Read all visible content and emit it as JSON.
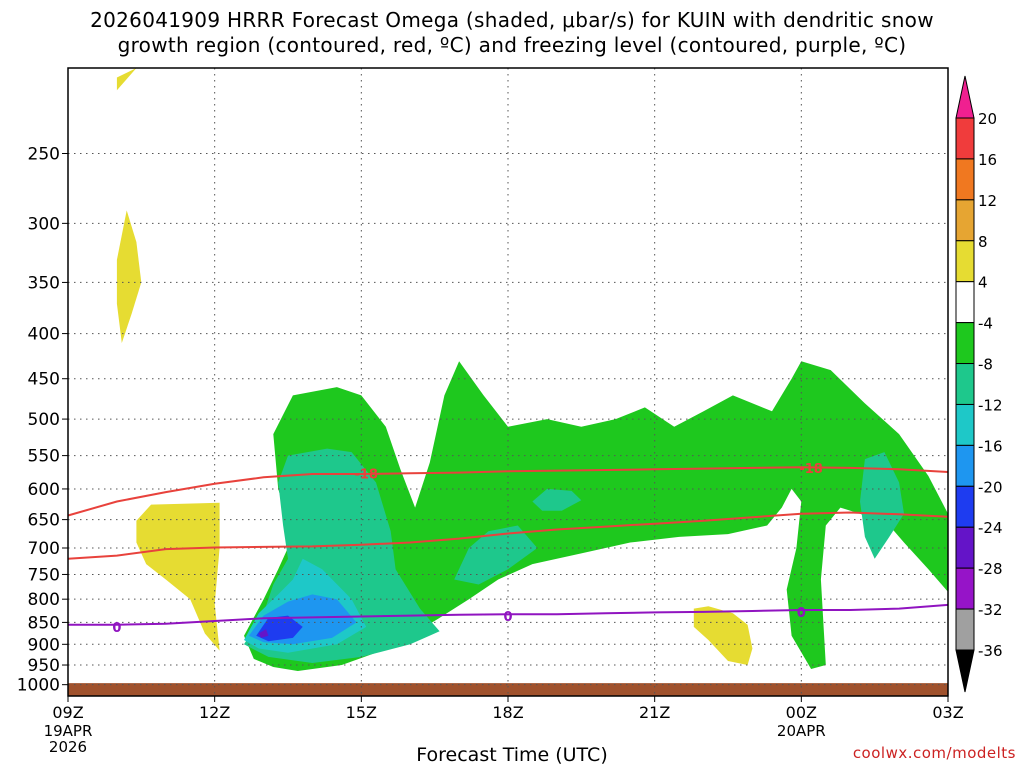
{
  "chart_data": {
    "type": "heatmap",
    "title_line1": "2026041909 HRRR Forecast Omega (shaded, μbar/s) for KUIN with dendritic snow",
    "title_line2": "growth region (contoured, red, ºC) and freezing level (contoured, purple, ºC)",
    "xlabel": "Forecast Time (UTC)",
    "credit": "coolwx.com/modelts",
    "x_ticks": [
      {
        "hour": 0,
        "label": "09Z",
        "sub1": "19APR",
        "sub2": "2026"
      },
      {
        "hour": 3,
        "label": "12Z",
        "sub1": "",
        "sub2": ""
      },
      {
        "hour": 6,
        "label": "15Z",
        "sub1": "",
        "sub2": ""
      },
      {
        "hour": 9,
        "label": "18Z",
        "sub1": "",
        "sub2": ""
      },
      {
        "hour": 12,
        "label": "21Z",
        "sub1": "",
        "sub2": ""
      },
      {
        "hour": 15,
        "label": "00Z",
        "sub1": "20APR",
        "sub2": ""
      },
      {
        "hour": 18,
        "label": "03Z",
        "sub1": "",
        "sub2": ""
      }
    ],
    "y_ticks": [
      250,
      300,
      350,
      400,
      450,
      500,
      550,
      600,
      650,
      700,
      750,
      800,
      850,
      900,
      950,
      1000
    ],
    "y_range_hpa": [
      200,
      1030
    ],
    "x_range_hours": [
      0,
      18
    ],
    "grid": true,
    "colorbar": {
      "labels": [
        "20",
        "16",
        "12",
        "8",
        "4",
        "-4",
        "-8",
        "-12",
        "-16",
        "-20",
        "-24",
        "-28",
        "-32",
        "-36"
      ],
      "colors": [
        "#f02090",
        "#f03c3c",
        "#f07820",
        "#e6a532",
        "#e6dc32",
        "#ffffff",
        "#1ec81e",
        "#1ec88c",
        "#1ec8c8",
        "#1e96f0",
        "#1e3cf0",
        "#6414c8",
        "#9614c8",
        "#a0a0a0",
        "#000000"
      ]
    },
    "surface_color": "#a0522d",
    "dgz_color": "#e8423c",
    "freezing_color": "#9014c0",
    "series": [
      {
        "name": "-18",
        "values": [
          [
            0,
            643
          ],
          [
            1,
            620
          ],
          [
            2,
            605
          ],
          [
            3,
            592
          ],
          [
            4,
            582
          ],
          [
            5,
            577
          ],
          [
            6,
            577
          ],
          [
            7,
            576
          ],
          [
            8,
            575
          ],
          [
            9,
            573
          ],
          [
            10,
            572
          ],
          [
            11,
            571
          ],
          [
            12,
            570
          ],
          [
            13,
            569
          ],
          [
            14,
            568
          ],
          [
            15,
            567
          ],
          [
            16,
            568
          ],
          [
            17,
            570
          ],
          [
            18,
            574
          ]
        ]
      },
      {
        "name": "-12",
        "values": [
          [
            0,
            720
          ],
          [
            1,
            714
          ],
          [
            2,
            702
          ],
          [
            3,
            699
          ],
          [
            4,
            698
          ],
          [
            5,
            697
          ],
          [
            6,
            694
          ],
          [
            7,
            690
          ],
          [
            8,
            683
          ],
          [
            9,
            674
          ],
          [
            10,
            667
          ],
          [
            11,
            662
          ],
          [
            12,
            657
          ],
          [
            13,
            652
          ],
          [
            14,
            646
          ],
          [
            15,
            640
          ],
          [
            16,
            638
          ],
          [
            17,
            641
          ],
          [
            18,
            645
          ]
        ]
      },
      {
        "name": "0",
        "values": [
          [
            0,
            855
          ],
          [
            1,
            855
          ],
          [
            2,
            853
          ],
          [
            3,
            847
          ],
          [
            4,
            841
          ],
          [
            5,
            839
          ],
          [
            6,
            837
          ],
          [
            7,
            835
          ],
          [
            8,
            833
          ],
          [
            9,
            832
          ],
          [
            10,
            832
          ],
          [
            11,
            830
          ],
          [
            12,
            828
          ],
          [
            13,
            827
          ],
          [
            14,
            825
          ],
          [
            15,
            823
          ],
          [
            16,
            823
          ],
          [
            17,
            820
          ],
          [
            18,
            812
          ]
        ]
      }
    ],
    "contour_labels": [
      {
        "text": "-18",
        "hour": 6.1,
        "hpa": 576,
        "color": "dgz"
      },
      {
        "text": "-18",
        "hour": 15.2,
        "hpa": 568,
        "color": "dgz"
      },
      {
        "text": "0",
        "hour": 1.0,
        "hpa": 860,
        "color": "frz"
      },
      {
        "text": "0",
        "hour": 9.0,
        "hpa": 836,
        "color": "frz"
      },
      {
        "text": "0",
        "hour": 15.0,
        "hpa": 827,
        "color": "frz"
      }
    ],
    "regions": [
      {
        "value": -4,
        "color": "#1ec81e",
        "points": [
          [
            3.8,
            935
          ],
          [
            3.6,
            880
          ],
          [
            4.0,
            800
          ],
          [
            4.3,
            740
          ],
          [
            4.6,
            680
          ],
          [
            4.3,
            600
          ],
          [
            4.2,
            520
          ],
          [
            4.6,
            470
          ],
          [
            5.5,
            460
          ],
          [
            6.0,
            470
          ],
          [
            6.5,
            510
          ],
          [
            6.8,
            570
          ],
          [
            7.1,
            630
          ],
          [
            7.4,
            560
          ],
          [
            7.7,
            470
          ],
          [
            8.0,
            430
          ],
          [
            8.5,
            470
          ],
          [
            9.0,
            510
          ],
          [
            9.8,
            500
          ],
          [
            10.5,
            510
          ],
          [
            11.2,
            500
          ],
          [
            11.8,
            485
          ],
          [
            12.4,
            510
          ],
          [
            13.0,
            490
          ],
          [
            13.6,
            470
          ],
          [
            14.4,
            490
          ],
          [
            14.8,
            450
          ],
          [
            15.0,
            430
          ],
          [
            15.6,
            440
          ],
          [
            16.3,
            480
          ],
          [
            17.0,
            520
          ],
          [
            17.6,
            580
          ],
          [
            18.0,
            640
          ],
          [
            18.0,
            785
          ],
          [
            17.6,
            740
          ],
          [
            17.1,
            690
          ],
          [
            16.8,
            660
          ],
          [
            16.5,
            650
          ],
          [
            16.2,
            640
          ],
          [
            15.8,
            630
          ],
          [
            15.5,
            660
          ],
          [
            15.4,
            760
          ],
          [
            15.5,
            950
          ],
          [
            15.2,
            960
          ],
          [
            14.8,
            880
          ],
          [
            14.7,
            780
          ],
          [
            14.9,
            700
          ],
          [
            15.0,
            620
          ],
          [
            14.8,
            600
          ],
          [
            14.6,
            630
          ],
          [
            14.3,
            660
          ],
          [
            13.5,
            675
          ],
          [
            12.5,
            680
          ],
          [
            11.5,
            690
          ],
          [
            10.5,
            710
          ],
          [
            9.5,
            730
          ],
          [
            8.8,
            760
          ],
          [
            8.2,
            800
          ],
          [
            7.6,
            840
          ],
          [
            7.0,
            880
          ],
          [
            6.3,
            920
          ],
          [
            5.6,
            950
          ],
          [
            4.7,
            965
          ],
          [
            4.2,
            955
          ]
        ]
      },
      {
        "value": -8,
        "color": "#1ec88c",
        "points": [
          [
            3.6,
            900
          ],
          [
            4.0,
            830
          ],
          [
            4.2,
            770
          ],
          [
            4.5,
            720
          ],
          [
            4.4,
            660
          ],
          [
            4.3,
            590
          ],
          [
            4.5,
            550
          ],
          [
            5.3,
            540
          ],
          [
            5.8,
            545
          ],
          [
            6.3,
            590
          ],
          [
            6.6,
            670
          ],
          [
            6.7,
            740
          ],
          [
            7.2,
            820
          ],
          [
            7.6,
            870
          ],
          [
            7.0,
            900
          ],
          [
            6.0,
            930
          ],
          [
            5.0,
            945
          ],
          [
            4.1,
            930
          ]
        ]
      },
      {
        "value": -8,
        "color": "#1ec88c",
        "points": [
          [
            7.9,
            760
          ],
          [
            8.2,
            700
          ],
          [
            8.6,
            670
          ],
          [
            9.2,
            660
          ],
          [
            9.6,
            700
          ],
          [
            9.0,
            740
          ],
          [
            8.4,
            770
          ]
        ]
      },
      {
        "value": -8,
        "color": "#1ec88c",
        "points": [
          [
            9.5,
            620
          ],
          [
            9.8,
            600
          ],
          [
            10.3,
            603
          ],
          [
            10.5,
            618
          ],
          [
            10.1,
            635
          ],
          [
            9.7,
            635
          ]
        ]
      },
      {
        "value": -8,
        "color": "#1ec88c",
        "points": [
          [
            16.3,
            555
          ],
          [
            16.7,
            545
          ],
          [
            17.0,
            590
          ],
          [
            17.1,
            640
          ],
          [
            16.8,
            680
          ],
          [
            16.5,
            720
          ],
          [
            16.3,
            680
          ],
          [
            16.2,
            620
          ]
        ]
      },
      {
        "value": -12,
        "color": "#1ec8c8",
        "points": [
          [
            3.6,
            890
          ],
          [
            3.9,
            830
          ],
          [
            4.3,
            790
          ],
          [
            4.6,
            760
          ],
          [
            4.8,
            720
          ],
          [
            5.2,
            740
          ],
          [
            5.8,
            800
          ],
          [
            6.1,
            860
          ],
          [
            5.5,
            900
          ],
          [
            4.5,
            920
          ],
          [
            3.9,
            910
          ]
        ]
      },
      {
        "value": -16,
        "color": "#1e96f0",
        "points": [
          [
            3.7,
            880
          ],
          [
            4.0,
            835
          ],
          [
            4.5,
            805
          ],
          [
            5.0,
            790
          ],
          [
            5.5,
            800
          ],
          [
            5.9,
            850
          ],
          [
            5.4,
            885
          ],
          [
            4.6,
            900
          ],
          [
            4.0,
            895
          ]
        ]
      },
      {
        "value": -20,
        "color": "#1e3cf0",
        "points": [
          [
            3.85,
            880
          ],
          [
            4.1,
            840
          ],
          [
            4.5,
            835
          ],
          [
            4.8,
            860
          ],
          [
            4.6,
            885
          ],
          [
            4.1,
            893
          ]
        ]
      },
      {
        "value": -24,
        "color": "#6414c8",
        "points": [
          [
            3.9,
            875
          ],
          [
            4.05,
            865
          ],
          [
            4.1,
            880
          ],
          [
            3.95,
            885
          ]
        ]
      },
      {
        "value": 4,
        "color": "#e6dc32",
        "points": [
          [
            1.4,
            652
          ],
          [
            1.7,
            625
          ],
          [
            3.1,
            622
          ],
          [
            3.1,
            700
          ],
          [
            3.0,
            810
          ],
          [
            3.1,
            915
          ],
          [
            2.8,
            875
          ],
          [
            2.5,
            800
          ],
          [
            2.0,
            760
          ],
          [
            1.6,
            730
          ],
          [
            1.4,
            690
          ]
        ]
      },
      {
        "value": 4,
        "color": "#e6dc32",
        "points": [
          [
            1.0,
            330
          ],
          [
            1.2,
            290
          ],
          [
            1.4,
            315
          ],
          [
            1.5,
            350
          ],
          [
            1.3,
            380
          ],
          [
            1.1,
            410
          ],
          [
            1.0,
            370
          ]
        ]
      },
      {
        "value": 4,
        "color": "#e6dc32",
        "points": [
          [
            1.0,
            205
          ],
          [
            1.4,
            200
          ],
          [
            1.0,
            212
          ]
        ]
      },
      {
        "value": 4,
        "color": "#e6dc32",
        "points": [
          [
            12.8,
            820
          ],
          [
            13.1,
            815
          ],
          [
            13.6,
            830
          ],
          [
            13.9,
            855
          ],
          [
            14.0,
            910
          ],
          [
            13.9,
            950
          ],
          [
            13.5,
            940
          ],
          [
            13.1,
            890
          ],
          [
            12.8,
            860
          ]
        ]
      }
    ]
  }
}
